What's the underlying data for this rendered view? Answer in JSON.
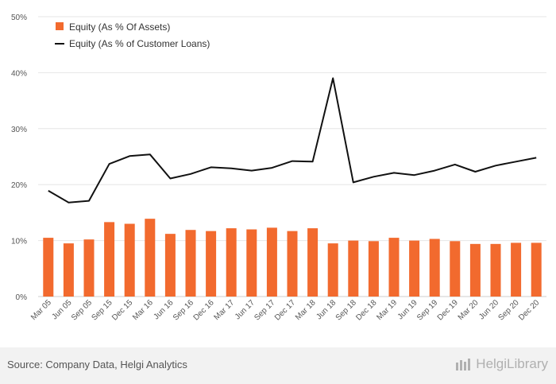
{
  "chart_data": {
    "type": "bar+line",
    "categories": [
      "Mar 05",
      "Jun 05",
      "Sep 05",
      "Sep 15",
      "Dec 15",
      "Mar 16",
      "Jun 16",
      "Sep 16",
      "Dec 16",
      "Mar 17",
      "Jun 17",
      "Sep 17",
      "Dec 17",
      "Mar 18",
      "Jun 18",
      "Sep 18",
      "Dec 18",
      "Mar 19",
      "Jun 19",
      "Sep 19",
      "Dec 19",
      "Mar 20",
      "Jun 20",
      "Sep 20",
      "Dec 20"
    ],
    "series": [
      {
        "name": "Equity (As % Of Assets)",
        "kind": "bar",
        "color": "#f26a2e",
        "values": [
          10.5,
          9.5,
          10.2,
          13.3,
          13.0,
          13.9,
          11.2,
          11.9,
          11.7,
          12.2,
          12.0,
          12.3,
          11.7,
          12.2,
          9.5,
          10.0,
          9.9,
          10.5,
          10.0,
          10.3,
          9.9,
          9.4,
          9.4,
          9.6,
          9.6
        ]
      },
      {
        "name": "Equity (As % of Customer Loans)",
        "kind": "line",
        "color": "#111111",
        "values": [
          18.9,
          16.8,
          17.1,
          23.7,
          25.1,
          25.4,
          21.1,
          21.9,
          23.1,
          22.9,
          22.5,
          23.0,
          24.2,
          24.1,
          39.0,
          20.4,
          21.4,
          22.1,
          21.7,
          22.5,
          23.6,
          22.3,
          23.4,
          24.1,
          24.8
        ]
      }
    ],
    "y_ticks": [
      "0%",
      "10%",
      "20%",
      "30%",
      "40%",
      "50%"
    ],
    "ylim": [
      0,
      50
    ],
    "grid": true,
    "legend": "top-left"
  },
  "footer": {
    "source": "Source: Company Data, Helgi Analytics",
    "brand": "HelgiLibrary"
  }
}
